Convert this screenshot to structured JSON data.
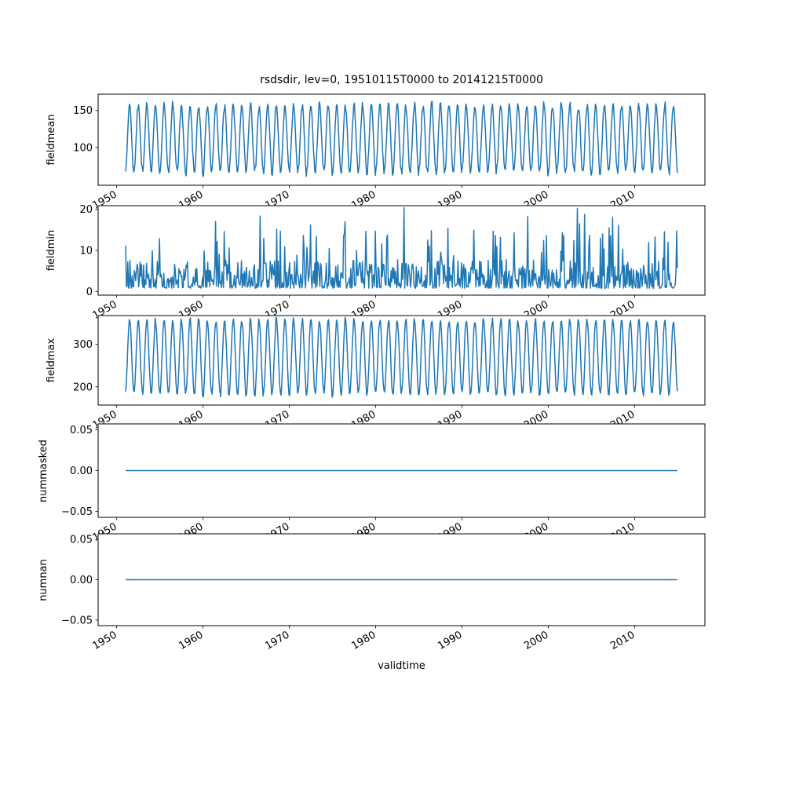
{
  "figure": {
    "title": "rsdsdir, lev=0, 19510115T0000 to 20141215T0000",
    "xlabel": "validtime",
    "line_color": "#1f77b4",
    "background": "#ffffff",
    "xlim": [
      1947.85,
      2018.15
    ],
    "xticks": [
      1950,
      1960,
      1970,
      1980,
      1990,
      2000,
      2010
    ],
    "xtick_labels": [
      "1950",
      "1960",
      "1970",
      "1980",
      "1990",
      "2000",
      "2010"
    ]
  },
  "chart_data": [
    {
      "type": "line",
      "ylabel": "fieldmean",
      "x_start": 1951.042,
      "x_end": 2014.958,
      "points_per_year": 12,
      "sampling": "monthly",
      "ylim": [
        49,
        172
      ],
      "yticks": [
        100,
        150
      ],
      "ytick_labels": [
        "100",
        "150"
      ],
      "model": {
        "kind": "seasonal",
        "mean": 112,
        "amplitude": 46,
        "amp_jitter": 5,
        "noise": 3,
        "seed": 11
      },
      "summary": "Annual seasonal cycle: winter minima ~60-72, summer maxima ~140-163"
    },
    {
      "type": "line",
      "ylabel": "fieldmin",
      "x_start": 1951.042,
      "x_end": 2014.958,
      "points_per_year": 12,
      "sampling": "monthly",
      "ylim": [
        -0.9,
        20.9
      ],
      "yticks": [
        0,
        10,
        20
      ],
      "ytick_labels": [
        "0",
        "10",
        "20"
      ],
      "model": {
        "kind": "spiky",
        "base": 0.8,
        "spread": 7,
        "spike_prob": 0.07,
        "spike_min": 4,
        "spike_max": 14,
        "cap": 20.5,
        "seed": 23,
        "peaks": [
          [
            1962.5,
            14.6
          ],
          [
            1976.5,
            17.0
          ],
          [
            1983.3,
            20.4
          ],
          [
            1994.5,
            13.2
          ],
          [
            2006.3,
            14.0
          ]
        ]
      },
      "summary": "Noisy series mostly between ~0.5 and 8 with irregular spikes up to ~20.5"
    },
    {
      "type": "line",
      "ylabel": "fieldmax",
      "x_start": 1951.042,
      "x_end": 2014.958,
      "points_per_year": 12,
      "sampling": "monthly",
      "ylim": [
        157,
        368
      ],
      "yticks": [
        200,
        300
      ],
      "ytick_labels": [
        "200",
        "300"
      ],
      "model": {
        "kind": "seasonal",
        "mean": 270,
        "amplitude": 88,
        "amp_jitter": 6,
        "noise": 4,
        "seed": 37
      },
      "summary": "Annual seasonal cycle: winter minima ~170-200, summer maxima ~340-368"
    },
    {
      "type": "line",
      "ylabel": "nummasked",
      "x_start": 1951.042,
      "x_end": 2014.958,
      "points_per_year": 12,
      "sampling": "monthly",
      "ylim": [
        -0.057,
        0.057
      ],
      "yticks": [
        -0.05,
        0,
        0.05
      ],
      "ytick_labels": [
        "−0.05",
        "0.00",
        "0.05"
      ],
      "model": {
        "kind": "constant",
        "value": 0
      },
      "summary": "Constant 0 for entire period"
    },
    {
      "type": "line",
      "ylabel": "numnan",
      "x_start": 1951.042,
      "x_end": 2014.958,
      "points_per_year": 12,
      "sampling": "monthly",
      "ylim": [
        -0.057,
        0.057
      ],
      "yticks": [
        -0.05,
        0,
        0.05
      ],
      "ytick_labels": [
        "−0.05",
        "0.00",
        "0.05"
      ],
      "model": {
        "kind": "constant",
        "value": 0
      },
      "summary": "Constant 0 for entire period"
    }
  ]
}
